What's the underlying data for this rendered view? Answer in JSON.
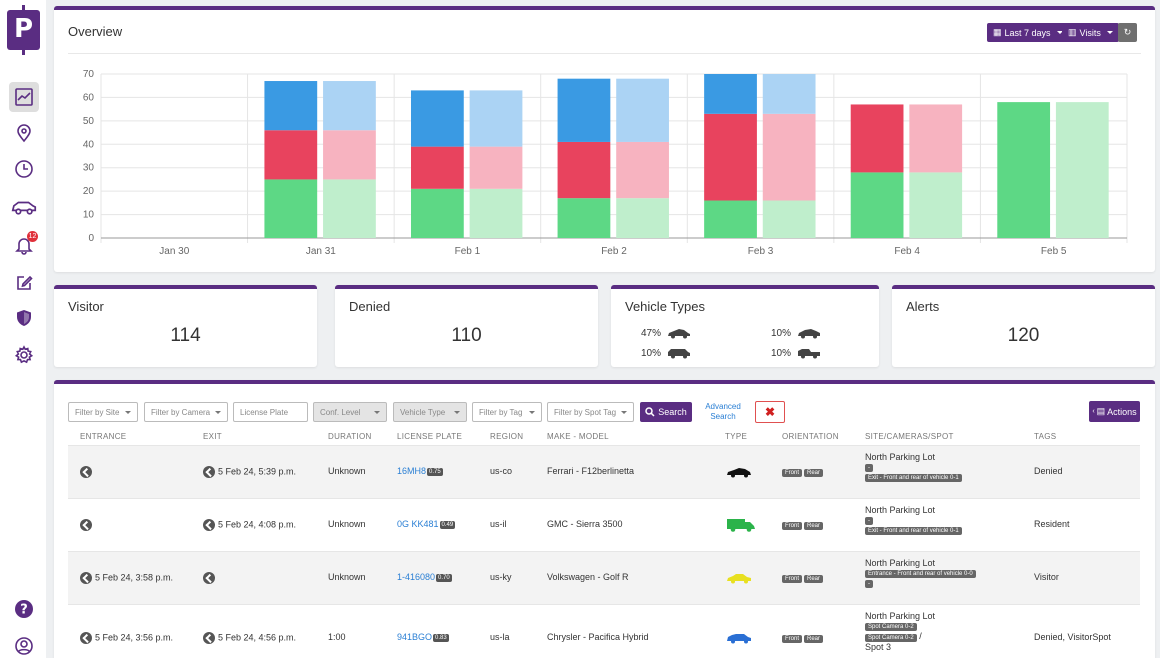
{
  "app": {
    "logo_letter": "P"
  },
  "sidebar": {
    "items": [
      {
        "name": "analytics",
        "icon": "line-chart-icon",
        "active": true
      },
      {
        "name": "locations",
        "icon": "map-pin-icon"
      },
      {
        "name": "history",
        "icon": "clock-icon"
      },
      {
        "name": "vehicles",
        "icon": "car-icon"
      },
      {
        "name": "alerts",
        "icon": "bell-icon",
        "badge": "12"
      },
      {
        "name": "edit",
        "icon": "edit-icon"
      },
      {
        "name": "security",
        "icon": "shield-icon"
      },
      {
        "name": "settings",
        "icon": "gear-icon"
      }
    ],
    "bottom": [
      {
        "name": "help",
        "icon": "question-icon"
      },
      {
        "name": "account",
        "icon": "user-circle-icon"
      }
    ]
  },
  "overview": {
    "title": "Overview",
    "range_label": "Last 7 days",
    "metric_label": "Visits"
  },
  "chart_data": {
    "type": "bar",
    "stacked": true,
    "categories": [
      "Jan 30",
      "Jan 31",
      "Feb 1",
      "Feb 2",
      "Feb 3",
      "Feb 4",
      "Feb 5"
    ],
    "ylim": [
      0,
      70
    ],
    "yticks": [
      0,
      10,
      20,
      30,
      40,
      50,
      60,
      70
    ],
    "grid": true,
    "series_colors": {
      "green": "#5dd885",
      "red": "#e8435e",
      "blue": "#3a9ae3"
    },
    "series_colors_light": {
      "green": "#bfeecc",
      "red": "#f7b3c0",
      "blue": "#abd3f4"
    },
    "bars": [
      {
        "green": 0,
        "red": 0,
        "blue": 0
      },
      {
        "green": 25,
        "red": 21,
        "blue": 21
      },
      {
        "green": 21,
        "red": 18,
        "blue": 24
      },
      {
        "green": 17,
        "red": 24,
        "blue": 27
      },
      {
        "green": 16,
        "red": 37,
        "blue": 17
      },
      {
        "green": 28,
        "red": 29,
        "blue": 0
      },
      {
        "green": 58,
        "red": 0,
        "blue": 0
      }
    ]
  },
  "stats": {
    "visitor": {
      "label": "Visitor",
      "value": "114"
    },
    "denied": {
      "label": "Denied",
      "value": "110"
    },
    "vehicle_types": {
      "label": "Vehicle Types",
      "items": [
        {
          "pct": "47%",
          "icon": "sedan-icon"
        },
        {
          "pct": "10%",
          "icon": "van-icon"
        },
        {
          "pct": "10%",
          "icon": "sports-car-icon"
        },
        {
          "pct": "10%",
          "icon": "pickup-icon"
        }
      ]
    },
    "alerts": {
      "label": "Alerts",
      "value": "120"
    }
  },
  "filters": {
    "site": "Filter by Site",
    "camera": "Filter by Camera",
    "plate": "License Plate",
    "conf": "Conf. Level",
    "vtype": "Vehicle Type",
    "tag": "Filter by Tag",
    "spot_tag": "Filter by Spot Tag",
    "search": "Search",
    "advanced": "Advanced Search",
    "clear": "✖",
    "actions": "Actions"
  },
  "table": {
    "headers": [
      "ENTRANCE",
      "EXIT",
      "DURATION",
      "LICENSE PLATE",
      "REGION",
      "MAKE - MODEL",
      "TYPE",
      "ORIENTATION",
      "SITE/CAMERAS/SPOT",
      "TAGS"
    ],
    "orientation_front": "Front",
    "orientation_rear": "Rear",
    "rows": [
      {
        "entrance": "",
        "exit": "5 Feb 24, 5:39 p.m.",
        "duration": "Unknown",
        "plate": "16MH8",
        "conf": "0.75",
        "region": "us-co",
        "make_model": "Ferrari - F12berlinetta",
        "type_color": "#111111",
        "site": "North Parking Lot",
        "cams": [
          "-",
          "Exit - Front and rear of vehicle 0-1"
        ],
        "tags": "Denied"
      },
      {
        "entrance": "",
        "exit": "5 Feb 24, 4:08 p.m.",
        "duration": "Unknown",
        "plate": "0G KK481",
        "conf": "0.49",
        "region": "us-il",
        "make_model": "GMC - Sierra 3500",
        "type_color": "#2bb34a",
        "site": "North Parking Lot",
        "cams": [
          "-",
          "Exit - Front and rear of vehicle 0-1"
        ],
        "tags": "Resident"
      },
      {
        "entrance": "5 Feb 24, 3:58 p.m.",
        "exit": "",
        "duration": "Unknown",
        "plate": "1-416080",
        "conf": "0.70",
        "region": "us-ky",
        "make_model": "Volkswagen - Golf R",
        "type_color": "#e8e020",
        "site": "North Parking Lot",
        "cams": [
          "Entrance - Front and rear of vehicle 0-0",
          "-"
        ],
        "tags": "Visitor"
      },
      {
        "entrance": "5 Feb 24, 3:56 p.m.",
        "exit": "5 Feb 24, 4:56 p.m.",
        "duration": "1:00",
        "plate": "941BGO",
        "conf": "0.83",
        "region": "us-la",
        "make_model": "Chrysler - Pacifica Hybrid",
        "type_color": "#2a6fd4",
        "site": "North Parking Lot",
        "cams": [
          "Spot Camera 0-2",
          "Spot Camera 0-2"
        ],
        "spot_sep": "/",
        "spot": "Spot 3",
        "tags": "Denied, VisitorSpot"
      }
    ]
  }
}
